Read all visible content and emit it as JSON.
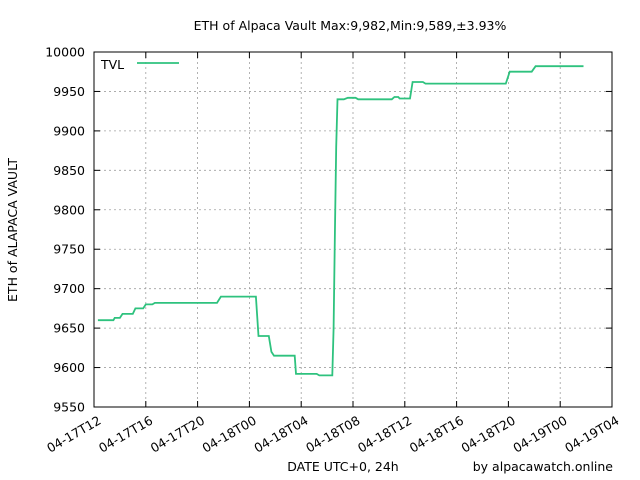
{
  "chart_data": {
    "type": "line",
    "title": "ETH of Alpaca Vault Max:9,982,Min:9,589,±3.93%",
    "xlabel": "DATE UTC+0, 24h",
    "ylabel": "ETH of ALAPACA VAULT",
    "credit": "by alpacawatch.online",
    "ylim": [
      9550,
      10000
    ],
    "y_ticks": [
      9550,
      9600,
      9650,
      9700,
      9750,
      9800,
      9850,
      9900,
      9950,
      10000
    ],
    "x_tick_labels": [
      "04-17T12",
      "04-17T16",
      "04-17T20",
      "04-18T00",
      "04-18T04",
      "04-18T08",
      "04-18T12",
      "04-18T16",
      "04-18T20",
      "04-19T00",
      "04-19T04"
    ],
    "xlim_hours": [
      12,
      52
    ],
    "grid": true,
    "legend_position": "top-left",
    "series": [
      {
        "name": "TVL",
        "color": "#2ec27e",
        "points": [
          [
            12.3,
            9660
          ],
          [
            13.5,
            9660
          ],
          [
            13.6,
            9663
          ],
          [
            14.0,
            9663
          ],
          [
            14.2,
            9668
          ],
          [
            15.0,
            9668
          ],
          [
            15.2,
            9675
          ],
          [
            15.8,
            9675
          ],
          [
            16.0,
            9680
          ],
          [
            16.5,
            9680
          ],
          [
            16.7,
            9682
          ],
          [
            21.5,
            9682
          ],
          [
            21.8,
            9690
          ],
          [
            24.5,
            9690
          ],
          [
            24.6,
            9665
          ],
          [
            24.7,
            9640
          ],
          [
            25.5,
            9640
          ],
          [
            25.7,
            9620
          ],
          [
            25.9,
            9615
          ],
          [
            27.5,
            9615
          ],
          [
            27.6,
            9592
          ],
          [
            29.2,
            9592
          ],
          [
            29.4,
            9590
          ],
          [
            30.4,
            9590
          ],
          [
            30.5,
            9650
          ],
          [
            30.6,
            9770
          ],
          [
            30.7,
            9880
          ],
          [
            30.8,
            9940
          ],
          [
            31.3,
            9940
          ],
          [
            31.6,
            9942
          ],
          [
            32.2,
            9942
          ],
          [
            32.4,
            9940
          ],
          [
            35.0,
            9940
          ],
          [
            35.2,
            9943
          ],
          [
            35.5,
            9943
          ],
          [
            35.6,
            9941
          ],
          [
            36.4,
            9941
          ],
          [
            36.6,
            9962
          ],
          [
            37.4,
            9962
          ],
          [
            37.6,
            9960
          ],
          [
            43.8,
            9960
          ],
          [
            44.1,
            9975
          ],
          [
            45.8,
            9975
          ],
          [
            46.1,
            9982
          ],
          [
            49.8,
            9982
          ]
        ]
      }
    ]
  }
}
